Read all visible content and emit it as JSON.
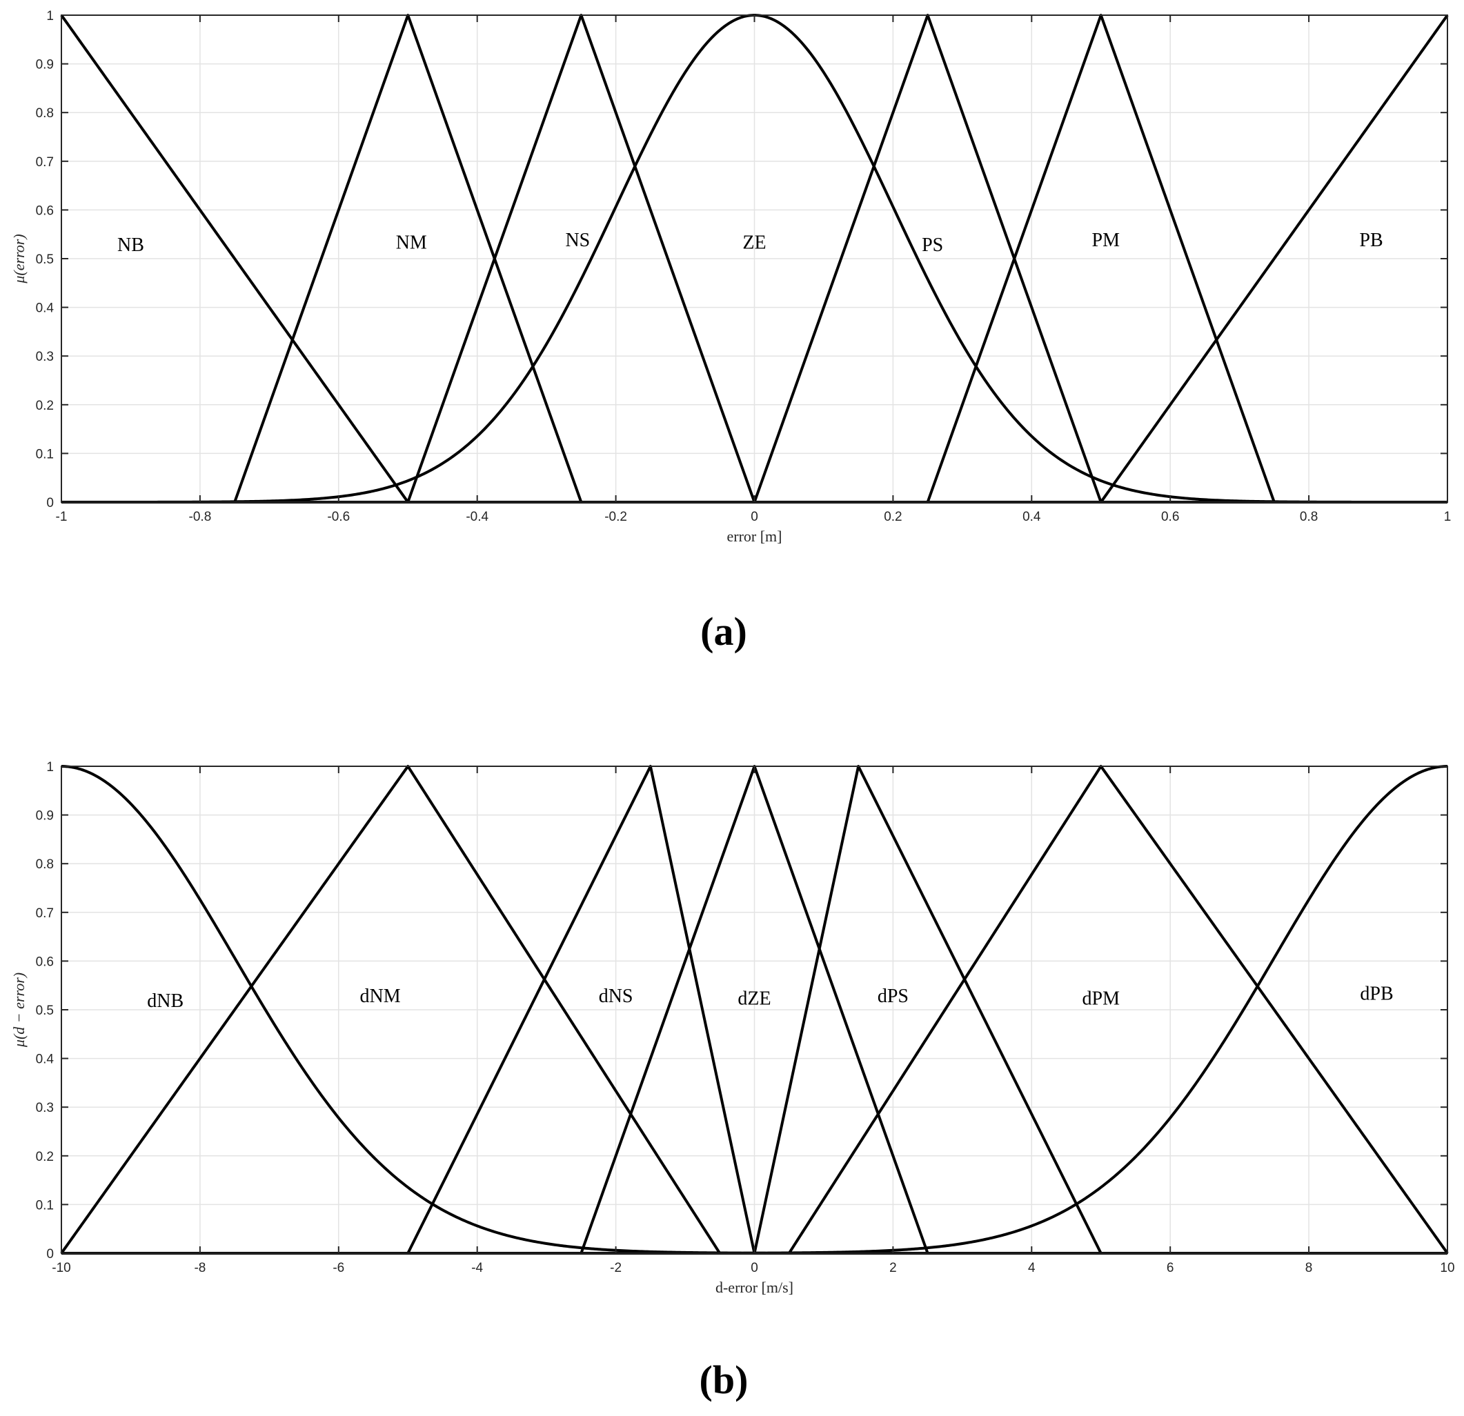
{
  "chart_data": [
    {
      "type": "line",
      "panel_label": "(a)",
      "xlabel": "error [m]",
      "ylabel": "μ(error)",
      "xlim": [
        -1,
        1
      ],
      "ylim": [
        0,
        1
      ],
      "xticks": [
        -1,
        -0.8,
        -0.6,
        -0.4,
        -0.2,
        0,
        0.2,
        0.4,
        0.6,
        0.8,
        1
      ],
      "xtick_labels": [
        "-1",
        "-0.8",
        "-0.6",
        "-0.4",
        "-0.2",
        "0",
        "0.2",
        "0.4",
        "0.6",
        "0.8",
        "1"
      ],
      "yticks": [
        0,
        0.1,
        0.2,
        0.3,
        0.4,
        0.5,
        0.6,
        0.7,
        0.8,
        0.9,
        1
      ],
      "ytick_labels": [
        "0",
        "0.1",
        "0.2",
        "0.3",
        "0.4",
        "0.5",
        "0.6",
        "0.7",
        "0.8",
        "0.9",
        "1"
      ],
      "grid": true,
      "series": [
        {
          "name": "NB",
          "shape": "triangle",
          "params": [
            -1,
            -1,
            -0.5
          ],
          "label_pos": [
            -0.9,
            0.53
          ]
        },
        {
          "name": "NM",
          "shape": "triangle",
          "params": [
            -0.75,
            -0.5,
            -0.25
          ],
          "label_pos": [
            -0.495,
            0.535
          ]
        },
        {
          "name": "NS",
          "shape": "triangle",
          "params": [
            -0.5,
            -0.25,
            0
          ],
          "label_pos": [
            -0.255,
            0.54
          ]
        },
        {
          "name": "ZE",
          "shape": "gaussian",
          "params": [
            0,
            0.2
          ],
          "label_pos": [
            0,
            0.535
          ]
        },
        {
          "name": "PS",
          "shape": "triangle",
          "params": [
            0,
            0.25,
            0.5
          ],
          "label_pos": [
            0.257,
            0.53
          ]
        },
        {
          "name": "PM",
          "shape": "triangle",
          "params": [
            0.25,
            0.5,
            0.75
          ],
          "label_pos": [
            0.507,
            0.54
          ]
        },
        {
          "name": "PB",
          "shape": "triangle",
          "params": [
            0.5,
            1,
            1
          ],
          "label_pos": [
            0.89,
            0.54
          ]
        }
      ]
    },
    {
      "type": "line",
      "panel_label": "(b)",
      "xlabel": "d-error [m/s]",
      "ylabel": "μ(d − error)",
      "xlim": [
        -10,
        10
      ],
      "ylim": [
        0,
        1
      ],
      "xticks": [
        -10,
        -8,
        -6,
        -4,
        -2,
        0,
        2,
        4,
        6,
        8,
        10
      ],
      "xtick_labels": [
        "-10",
        "-8",
        "-6",
        "-4",
        "-2",
        "0",
        "2",
        "4",
        "6",
        "8",
        "10"
      ],
      "yticks": [
        0,
        0.1,
        0.2,
        0.3,
        0.4,
        0.5,
        0.6,
        0.7,
        0.8,
        0.9,
        1
      ],
      "ytick_labels": [
        "0",
        "0.1",
        "0.2",
        "0.3",
        "0.4",
        "0.5",
        "0.6",
        "0.7",
        "0.8",
        "0.9",
        "1"
      ],
      "grid": true,
      "series": [
        {
          "name": "dNB",
          "shape": "gaussian",
          "params": [
            -10,
            2.5
          ],
          "label_pos": [
            -8.5,
            0.52
          ]
        },
        {
          "name": "dNM",
          "shape": "triangle",
          "params": [
            -10,
            -5,
            -0.5
          ],
          "label_pos": [
            -5.4,
            0.53
          ]
        },
        {
          "name": "dNS",
          "shape": "triangle",
          "params": [
            -5,
            -1.5,
            0
          ],
          "label_pos": [
            -2.0,
            0.53
          ]
        },
        {
          "name": "dZE",
          "shape": "triangle",
          "params": [
            -2.5,
            0,
            2.5
          ],
          "label_pos": [
            0,
            0.525
          ]
        },
        {
          "name": "dPS",
          "shape": "triangle",
          "params": [
            0,
            1.5,
            5
          ],
          "label_pos": [
            2.0,
            0.53
          ]
        },
        {
          "name": "dPM",
          "shape": "triangle",
          "params": [
            0.5,
            5,
            10
          ],
          "label_pos": [
            5.0,
            0.525
          ]
        },
        {
          "name": "dPB",
          "shape": "gaussian",
          "params": [
            10,
            2.5
          ],
          "label_pos": [
            8.98,
            0.535
          ]
        }
      ]
    }
  ]
}
